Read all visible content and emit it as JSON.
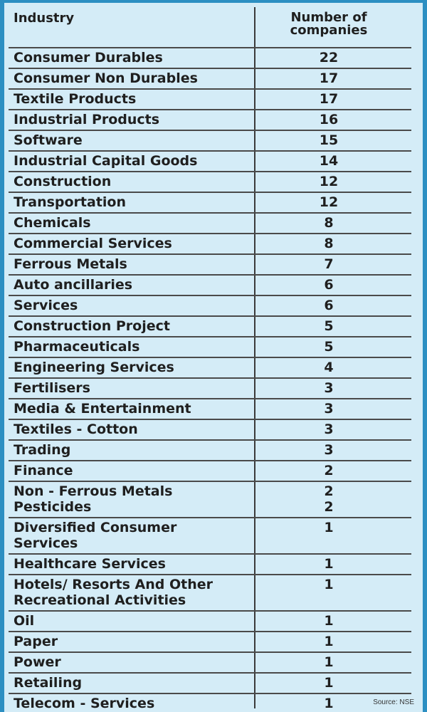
{
  "table": {
    "header": {
      "industry": "Industry",
      "count": "Number of\ncompanies"
    },
    "source": "Source: NSE"
  },
  "chart_data": {
    "type": "table",
    "columns": [
      "Industry",
      "Number of companies"
    ],
    "rows": [
      [
        "Consumer Durables",
        22
      ],
      [
        "Consumer Non Durables",
        17
      ],
      [
        "Textile Products",
        17
      ],
      [
        "Industrial Products",
        16
      ],
      [
        "Software",
        15
      ],
      [
        "Industrial Capital Goods",
        14
      ],
      [
        "Construction",
        12
      ],
      [
        "Transportation",
        12
      ],
      [
        "Chemicals",
        8
      ],
      [
        "Commercial Services",
        8
      ],
      [
        "Ferrous Metals",
        7
      ],
      [
        "Auto ancillaries",
        6
      ],
      [
        "Services",
        6
      ],
      [
        "Construction Project",
        5
      ],
      [
        "Pharmaceuticals",
        5
      ],
      [
        "Engineering Services",
        4
      ],
      [
        "Fertilisers",
        3
      ],
      [
        "Media & Entertainment",
        3
      ],
      [
        "Textiles - Cotton",
        3
      ],
      [
        "Trading",
        3
      ],
      [
        "Finance",
        2
      ],
      [
        "Non - Ferrous Metals",
        2
      ],
      [
        "Pesticides",
        2
      ],
      [
        "Diversified Consumer\nServices",
        1
      ],
      [
        "Healthcare Services",
        1
      ],
      [
        "Hotels/ Resorts And Other\nRecreational Activities",
        1
      ],
      [
        "Oil",
        1
      ],
      [
        "Paper",
        1
      ],
      [
        "Power",
        1
      ],
      [
        "Retailing",
        1
      ],
      [
        "Telecom - Services",
        1
      ]
    ]
  }
}
